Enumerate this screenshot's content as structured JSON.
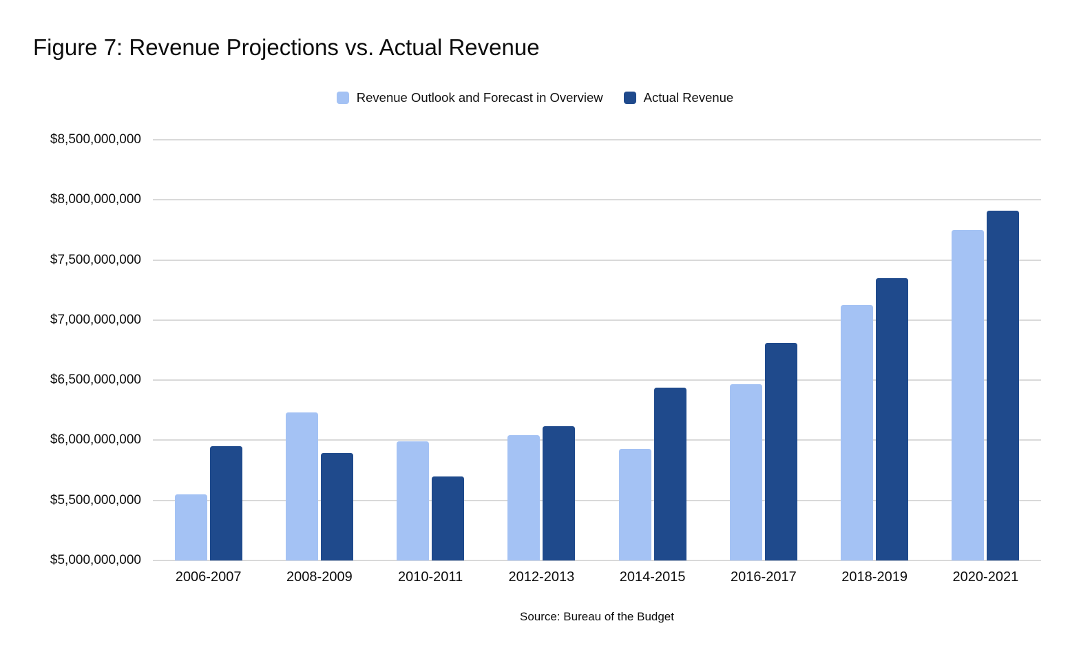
{
  "figure": {
    "title": "Figure 7: Revenue Projections vs. Actual Revenue",
    "source": "Source: Bureau of the Budget"
  },
  "colors": {
    "outlook_series": "#a4c2f4",
    "actual_series": "#1f4a8c",
    "gridline": "#d9d9d9",
    "text": "#0d0d0d",
    "background": "#ffffff"
  },
  "chart_data": {
    "type": "bar",
    "title": "Figure 7: Revenue Projections vs. Actual Revenue",
    "source": "Source: Bureau of the Budget",
    "categories": [
      "2006-2007",
      "2008-2009",
      "2010-2011",
      "2012-2013",
      "2014-2015",
      "2016-2017",
      "2018-2019",
      "2020-2021"
    ],
    "series": [
      {
        "name": "Revenue Outlook and Forecast in Overview",
        "color": "#a4c2f4",
        "values": [
          5550000000,
          6230000000,
          5990000000,
          6045000000,
          5930000000,
          6465000000,
          7125000000,
          7750000000
        ]
      },
      {
        "name": "Actual Revenue",
        "color": "#1f4a8c",
        "values": [
          5950000000,
          5895000000,
          5700000000,
          6115000000,
          6440000000,
          6810000000,
          7350000000,
          7910000000
        ]
      }
    ],
    "xlabel": "",
    "ylabel": "",
    "ylim": [
      5000000000,
      8500000000
    ],
    "ytick_step": 500000000,
    "ytick_labels_top_to_bottom": [
      "$8,500,000,000",
      "$8,000,000,000",
      "$7,500,000,000",
      "$7,000,000,000",
      "$6,500,000,000",
      "$6,000,000,000",
      "$5,500,000,000",
      "$5,000,000,000"
    ],
    "grid": true,
    "legend_position": "top-center"
  }
}
